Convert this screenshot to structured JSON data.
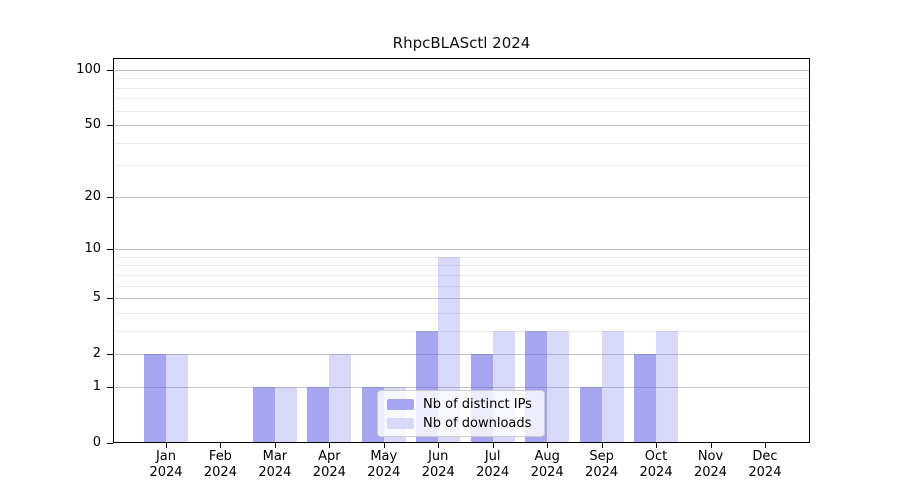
{
  "title": "RhpcBLASctl 2024",
  "chart_data": {
    "type": "bar",
    "title": "RhpcBLASctl 2024",
    "categories": [
      "Jan 2024",
      "Feb 2024",
      "Mar 2024",
      "Apr 2024",
      "May 2024",
      "Jun 2024",
      "Jul 2024",
      "Aug 2024",
      "Sep 2024",
      "Oct 2024",
      "Nov 2024",
      "Dec 2024"
    ],
    "series": [
      {
        "name": "Nb of distinct IPs",
        "values": [
          2,
          0,
          1,
          1,
          1,
          3,
          2,
          3,
          1,
          2,
          0,
          0
        ],
        "fill": "rgba(100,100,230,0.58)",
        "legend_color": "#a5a5f0"
      },
      {
        "name": "Nb of downloads",
        "values": [
          2,
          0,
          1,
          2,
          1,
          9,
          3,
          3,
          3,
          3,
          0,
          0
        ],
        "fill": "rgba(100,100,230,0.25)",
        "legend_color": "#d8d8f8"
      }
    ],
    "yscale": "log1p",
    "yticks": [
      0,
      1,
      2,
      5,
      10,
      20,
      50,
      100
    ],
    "minor_gridlines": [
      3,
      4,
      6,
      7,
      8,
      9,
      30,
      40,
      60,
      70,
      80,
      90
    ],
    "ylim": [
      0,
      117
    ],
    "grid": true,
    "legend_position": "inside-lower-center"
  },
  "colors": {
    "bar_distinct_ips": "#a5a5f0",
    "bar_downloads": "#d8d8f8",
    "major_grid": "#c5c5c5",
    "minor_grid": "#ebebeb",
    "axis": "#000000",
    "text": "#000000",
    "legend_border": "#cccccc"
  }
}
